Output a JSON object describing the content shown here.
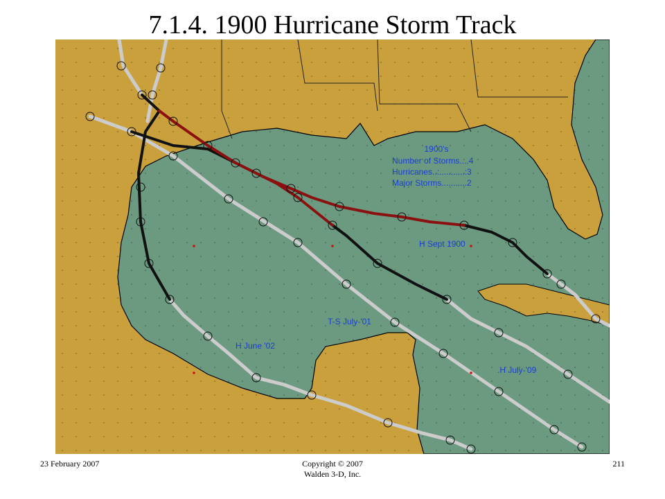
{
  "header": {
    "title": "7.1.4. 1900 Hurricane Storm Track"
  },
  "map": {
    "legend": {
      "heading": "1900's",
      "lines": [
        "Number of Storms....4",
        "Hurricanes..:...........:3",
        "Major Storms...........2"
      ]
    },
    "track_labels": [
      "H Sept 1900",
      "T-S July-'01",
      "H June '02",
      ".H July-'09"
    ]
  },
  "footer": {
    "date": "23 February 2007",
    "copyright": [
      "Copyright © 2007",
      "Walden 3-D, Inc."
    ],
    "page": "211"
  }
}
